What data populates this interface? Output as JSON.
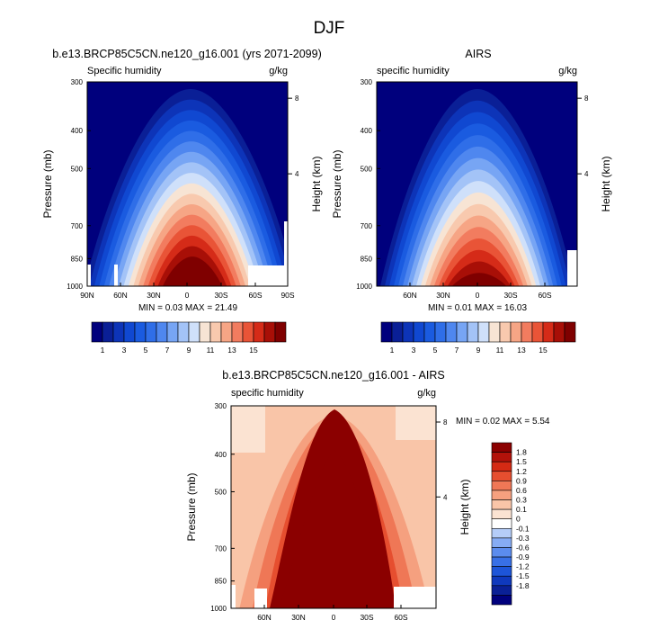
{
  "title": "DJF",
  "palettes": {
    "humidity": [
      "#00007d",
      "#0a1f96",
      "#0d34b8",
      "#1048d1",
      "#1a5be0",
      "#2f6ee8",
      "#4f87ef",
      "#77a5f4",
      "#a3c3f7",
      "#cfe0fa",
      "#f7e4d4",
      "#f8c9ae",
      "#f6a585",
      "#f27c5f",
      "#e95437",
      "#d52b18",
      "#a80f07",
      "#7f0000"
    ],
    "difference": [
      "#00007d",
      "#0a2096",
      "#0f39bd",
      "#1d55d8",
      "#3870e6",
      "#5b8cee",
      "#86acf4",
      "#b5cdf8",
      "#ffffff",
      "#fbe3d2",
      "#f9c5a8",
      "#f5a07f",
      "#ef7756",
      "#e64e2f",
      "#d42a14",
      "#b3120a",
      "#8b0000"
    ]
  },
  "chart_data": [
    {
      "type": "heatmap",
      "panel": "top-left",
      "title": "b.e13.BRCP85C5CN.ne120_g16.001 (yrs 2071-2099)",
      "left_label": "Specific humidity",
      "right_label": "g/kg",
      "ylabel": "Pressure (mb)",
      "y2label": "Height (km)",
      "yticks": [
        "300",
        "400",
        "500",
        "700",
        "850",
        "1000"
      ],
      "y2ticks": [
        "8",
        "4"
      ],
      "xticks": [
        "90N",
        "60N",
        "30N",
        "0",
        "30S",
        "60S",
        "90S"
      ],
      "stats": "MIN =  0.03  MAX = 21.49",
      "colorbar_labels": [
        "1",
        "3",
        "5",
        "7",
        "9",
        "11",
        "13",
        "15"
      ]
    },
    {
      "type": "heatmap",
      "panel": "top-right",
      "title": "AIRS",
      "left_label": "specific humidity",
      "right_label": "g/kg",
      "ylabel": "Pressure (mb)",
      "y2label": "Height (km)",
      "yticks": [
        "300",
        "400",
        "500",
        "700",
        "850",
        "1000"
      ],
      "y2ticks": [
        "8",
        "4"
      ],
      "xticks": [
        "60N",
        "30N",
        "0",
        "30S",
        "60S"
      ],
      "stats": "MIN =  0.01  MAX = 16.03",
      "colorbar_labels": [
        "1",
        "3",
        "5",
        "7",
        "9",
        "11",
        "13",
        "15"
      ]
    },
    {
      "type": "heatmap",
      "panel": "bottom",
      "title": "b.e13.BRCP85C5CN.ne120_g16.001 - AIRS",
      "left_label": "specific humidity",
      "right_label": "g/kg",
      "ylabel": "Pressure (mb)",
      "y2label": "Height (km)",
      "yticks": [
        "300",
        "400",
        "500",
        "700",
        "850",
        "1000"
      ],
      "y2ticks": [
        "8",
        "4"
      ],
      "xticks": [
        "60N",
        "30N",
        "0",
        "30S",
        "60S"
      ],
      "stats": "MIN =  0.02  MAX =  5.54",
      "colorbar_labels": [
        "1.8",
        "1.5",
        "1.2",
        "0.9",
        "0.6",
        "0.3",
        "0.1",
        "0",
        "-0.1",
        "-0.3",
        "-0.6",
        "-0.9",
        "-1.2",
        "-1.5",
        "-1.8"
      ]
    }
  ]
}
